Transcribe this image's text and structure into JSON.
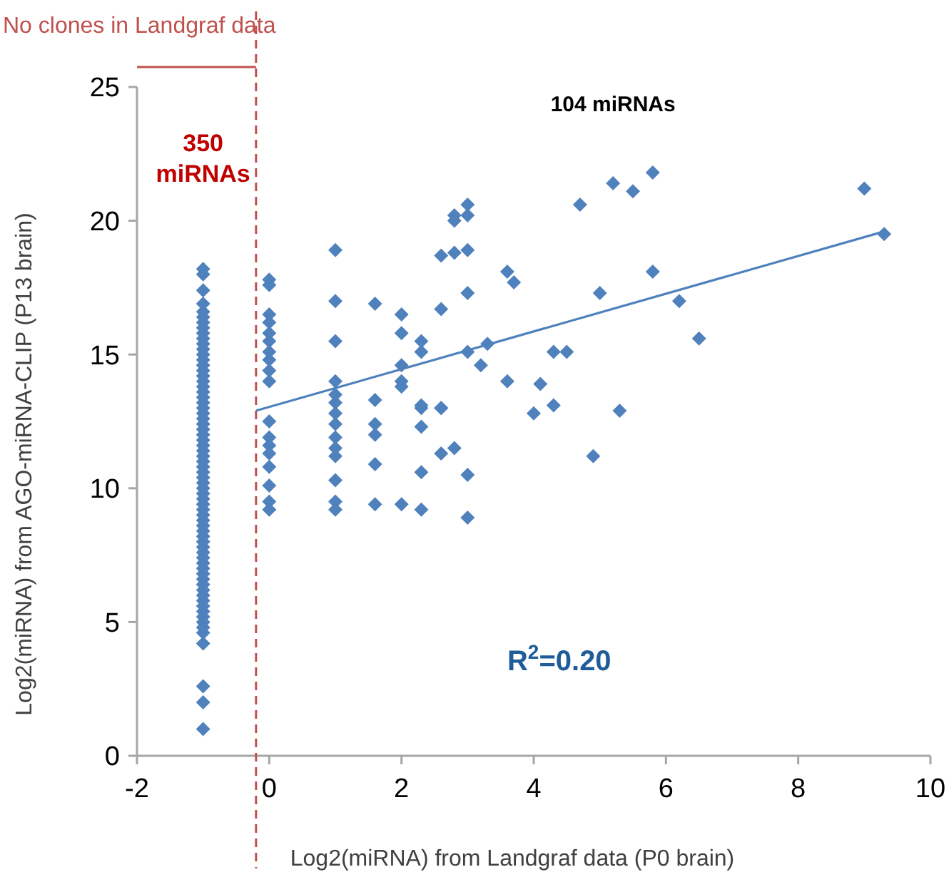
{
  "chart_data": {
    "type": "scatter",
    "xlabel": "Log2(miRNA) from Landgraf data (P0 brain)",
    "ylabel": "Log2(miRNA) from AGO-miRNA-CLIP (P13 brain)",
    "xlim": [
      -2,
      10
    ],
    "ylim": [
      0,
      25
    ],
    "xticks": [
      -2,
      0,
      2,
      4,
      6,
      8,
      10
    ],
    "yticks": [
      0,
      5,
      10,
      15,
      20,
      25
    ],
    "grid": false,
    "marker": "diamond",
    "series": [
      {
        "type": "scatter",
        "color": "#4f81bd",
        "x": [
          -1,
          -1,
          -1,
          -1,
          -1,
          -1,
          -1,
          -1,
          -1,
          -1,
          -1,
          -1,
          -1,
          -1,
          -1,
          -1,
          -1,
          -1,
          -1,
          -1,
          -1,
          -1,
          -1,
          -1,
          -1,
          -1,
          -1,
          -1,
          -1,
          -1,
          -1,
          -1,
          -1,
          -1,
          -1,
          -1,
          -1,
          -1,
          -1,
          -1,
          -1,
          -1,
          -1,
          -1,
          -1,
          -1,
          -1,
          -1,
          -1,
          -1,
          -1,
          -1,
          -1,
          -1,
          -1,
          -1,
          -1,
          -1,
          -1,
          -1,
          -1,
          -1,
          -1,
          -1,
          -1,
          -1,
          -1,
          -1,
          -1,
          0,
          0,
          0,
          0,
          0,
          0,
          0,
          0,
          0,
          0,
          0,
          0,
          0,
          0,
          0,
          0,
          0,
          0,
          1,
          1,
          1,
          1,
          1,
          1,
          1,
          1,
          1,
          1,
          1,
          1,
          1,
          1,
          1.6,
          1.6,
          1.6,
          1.6,
          1.6,
          1.6,
          2,
          2,
          2,
          2,
          2,
          2,
          2.3,
          2.3,
          2.3,
          2.3,
          2.3,
          2.3,
          2.3,
          2.6,
          2.6,
          2.6,
          2.6,
          2.6,
          2.8,
          2.8,
          2.8,
          2.8,
          3,
          3,
          3,
          3,
          3,
          3,
          3,
          3.2,
          3.3,
          3.6,
          3.7,
          3.6,
          4.1,
          4,
          4.3,
          4.3,
          4.5,
          4.7,
          4.9,
          5,
          5.2,
          5.3,
          5.5,
          5.8,
          5.8,
          6.2,
          6.5,
          9,
          9.3
        ],
        "values": [
          1,
          2,
          2.6,
          4.2,
          4.6,
          4.8,
          5,
          5.2,
          5.4,
          5.6,
          5.8,
          6,
          6.2,
          6.4,
          6.6,
          6.8,
          7,
          7.2,
          7.4,
          7.6,
          7.8,
          8,
          8.2,
          8.4,
          8.6,
          8.8,
          9,
          9.2,
          9.4,
          9.6,
          9.8,
          10,
          10.2,
          10.4,
          10.6,
          10.8,
          11,
          11.2,
          11.4,
          11.6,
          11.8,
          12,
          12.2,
          12.4,
          12.6,
          12.8,
          13,
          13.2,
          13.4,
          13.6,
          13.8,
          14,
          14.2,
          14.4,
          14.6,
          14.8,
          15,
          15.2,
          15.4,
          15.6,
          15.8,
          16,
          16.2,
          16.4,
          16.6,
          16.9,
          17.4,
          18,
          18.2,
          9.2,
          9.5,
          10.1,
          10.8,
          11.3,
          11.6,
          11.9,
          12.5,
          14,
          14.4,
          14.8,
          15.1,
          15.5,
          15.8,
          16.2,
          16.5,
          17.6,
          17.8,
          9.2,
          9.5,
          10.3,
          11.2,
          11.5,
          11.9,
          12.4,
          12.8,
          13.2,
          13.5,
          14,
          15.5,
          17,
          18.9,
          9.4,
          10.9,
          12,
          12.4,
          13.3,
          16.9,
          9.4,
          13.8,
          14,
          14.6,
          15.8,
          16.5,
          9.2,
          10.6,
          12.3,
          13,
          13.1,
          15.1,
          15.5,
          11.3,
          13,
          16.7,
          18.7,
          13,
          11.5,
          18.8,
          20,
          20.2,
          8.9,
          10.5,
          15.1,
          17.3,
          18.9,
          20.2,
          20.6,
          14.6,
          15.4,
          14,
          17.7,
          18.1,
          13.9,
          12.8,
          13.1,
          15.1,
          15.1,
          20.6,
          11.2,
          17.3,
          21.4,
          12.9,
          21.1,
          18.1,
          21.8,
          17,
          15.6,
          21.2,
          19.5
        ]
      },
      {
        "type": "line",
        "color": "#4f81bd",
        "marker": "none",
        "x": [
          -0.2,
          9.3
        ],
        "values": [
          12.9,
          19.6
        ]
      }
    ],
    "ref_lines": [
      {
        "axis": "x",
        "value": -0.2,
        "label": "No clones in Landgraf data",
        "color": "#c0504d",
        "line_style": "dashed"
      }
    ],
    "annotations": [
      "350 miRNAs",
      "104 miRNAs",
      "R$^{2}$=0.20"
    ]
  }
}
